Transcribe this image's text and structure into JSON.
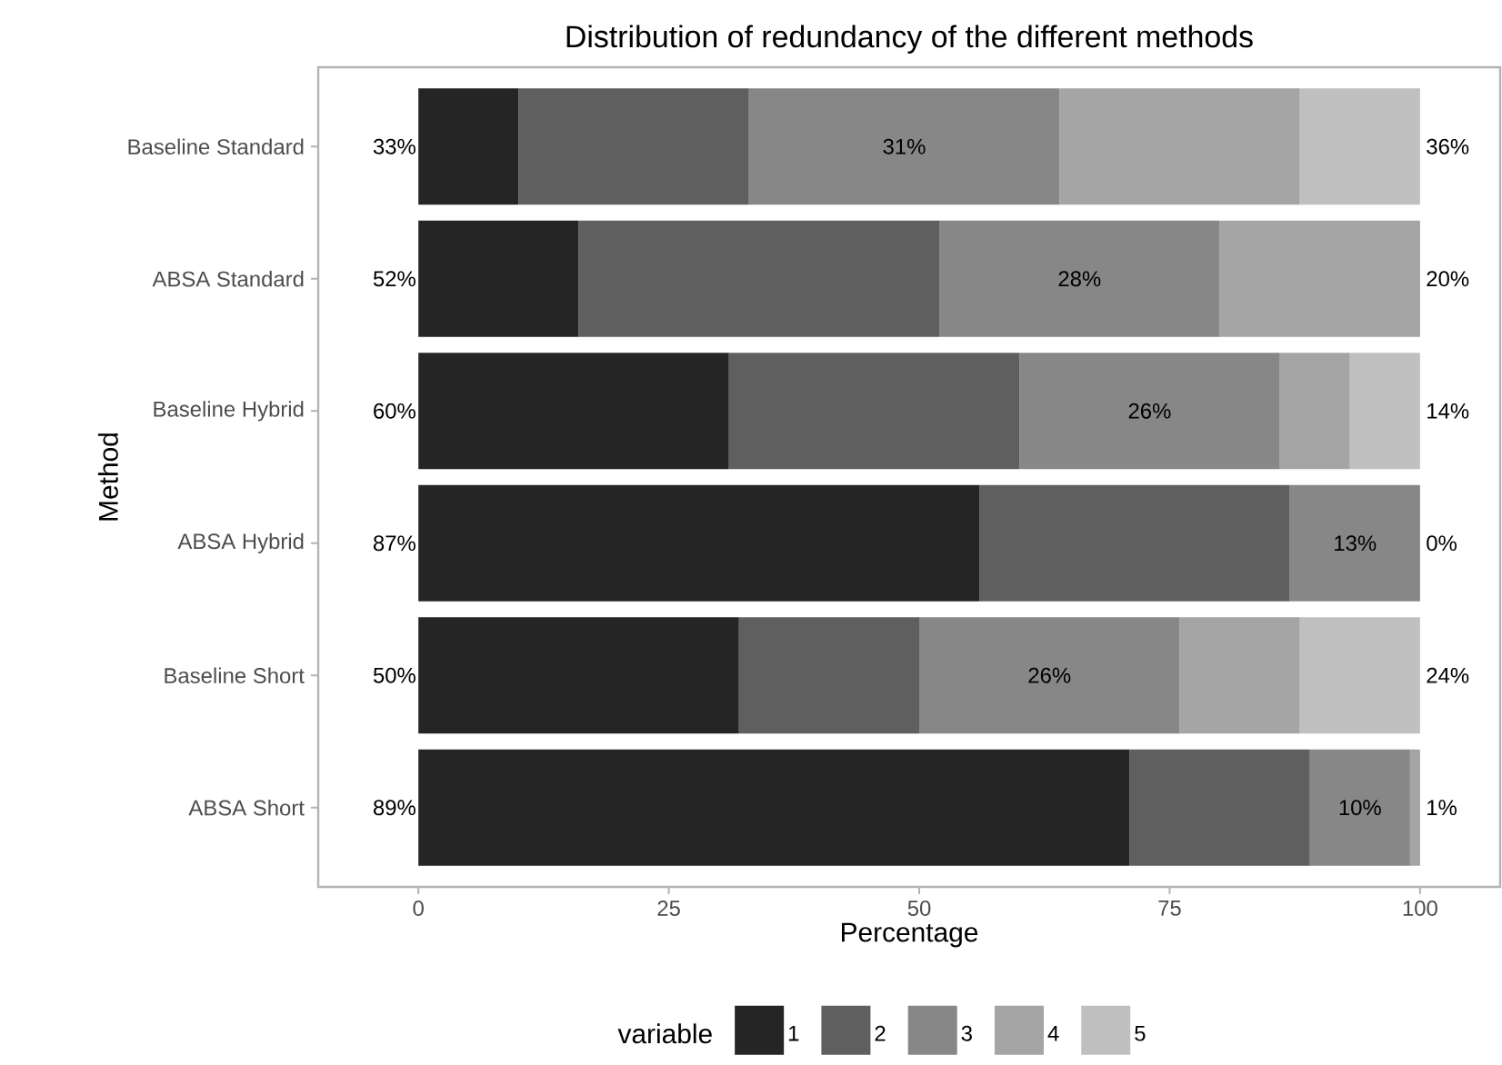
{
  "chart_data": {
    "type": "bar",
    "orientation": "horizontal",
    "stacked": true,
    "title": "Distribution of redundancy of the different methods",
    "xlabel": "Percentage",
    "ylabel": "Method",
    "legend_title": "variable",
    "categories": [
      "Baseline Standard",
      "ABSA Standard",
      "Baseline Hybrid",
      "ABSA Hybrid",
      "Baseline Short",
      "ABSA Short"
    ],
    "series": [
      {
        "name": "1",
        "color": "#252525",
        "values": [
          10,
          16,
          31,
          56,
          32,
          71
        ]
      },
      {
        "name": "2",
        "color": "#5f5f5f",
        "values": [
          23,
          36,
          29,
          31,
          18,
          18
        ]
      },
      {
        "name": "3",
        "color": "#878787",
        "values": [
          31,
          28,
          26,
          13,
          26,
          10
        ],
        "value_labels": [
          "31%",
          "28%",
          "26%",
          "13%",
          "26%",
          "10%"
        ]
      },
      {
        "name": "4",
        "color": "#a5a5a5",
        "values": [
          24,
          20,
          7,
          0,
          12,
          1
        ]
      },
      {
        "name": "5",
        "color": "#c0c0c0",
        "values": [
          12,
          0,
          7,
          0,
          12,
          0
        ]
      }
    ],
    "xlim": [
      -10,
      108
    ],
    "xticks": [
      0,
      25,
      50,
      75,
      100
    ],
    "legend": "bottom",
    "annotations": [
      "33%",
      "36%",
      "52%",
      "20%",
      "60%",
      "14%",
      "87%",
      "0%",
      "50%",
      "24%",
      "89%",
      "1%"
    ]
  }
}
